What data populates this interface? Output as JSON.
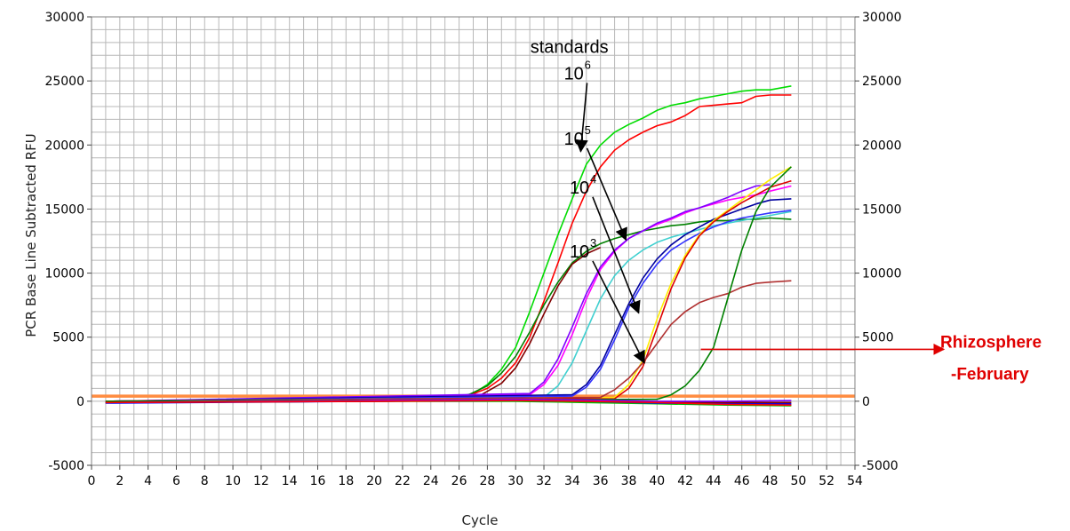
{
  "chart_data": {
    "type": "line",
    "title": "",
    "xlabel": "Cycle",
    "ylabel": "PCR Base Line Subtracted RFU",
    "xlim": [
      0,
      54
    ],
    "ylim": [
      -5000,
      30000
    ],
    "x_ticks": [
      0,
      2,
      4,
      6,
      8,
      10,
      12,
      14,
      16,
      18,
      20,
      22,
      24,
      26,
      28,
      30,
      32,
      34,
      36,
      38,
      40,
      42,
      44,
      46,
      48,
      50,
      52,
      54
    ],
    "y_ticks": [
      -5000,
      0,
      5000,
      10000,
      15000,
      20000,
      25000,
      30000
    ],
    "right_axis_mirror": true,
    "grid": true,
    "threshold": {
      "value": 400,
      "color": "#ff8c40"
    },
    "series": [
      {
        "color": "#00dd00",
        "x": [
          1,
          25,
          27,
          28,
          29,
          30,
          31,
          32,
          33,
          34,
          35,
          36,
          37,
          38,
          39,
          40,
          41,
          42,
          43,
          44,
          45,
          46,
          47,
          48,
          49.5
        ],
        "values": [
          -100,
          150,
          600,
          1300,
          2500,
          4200,
          7000,
          10000,
          13000,
          15800,
          18500,
          20000,
          21000,
          21600,
          22100,
          22700,
          23100,
          23300,
          23600,
          23800,
          24000,
          24200,
          24300,
          24300,
          24600
        ]
      },
      {
        "color": "#ff0000",
        "x": [
          1,
          26,
          28,
          29,
          30,
          31,
          32,
          33,
          34,
          35,
          36,
          37,
          38,
          39,
          40,
          41,
          42,
          43,
          44,
          45,
          46,
          47,
          48,
          49.5
        ],
        "values": [
          -100,
          150,
          1000,
          1800,
          3000,
          5000,
          7800,
          10800,
          13900,
          16400,
          18300,
          19600,
          20400,
          21000,
          21500,
          21800,
          22300,
          23000,
          23100,
          23200,
          23300,
          23800,
          23900,
          23900
        ]
      },
      {
        "color": "#008000",
        "x": [
          1,
          26,
          28,
          29,
          30,
          31,
          32,
          33,
          34,
          35,
          36,
          37,
          38,
          39,
          40,
          41,
          42,
          43,
          44,
          45,
          46,
          47,
          48,
          49.5
        ],
        "values": [
          -100,
          150,
          1200,
          2200,
          3500,
          5400,
          7500,
          9300,
          10800,
          11700,
          12300,
          12700,
          13000,
          13300,
          13500,
          13700,
          13800,
          14000,
          14100,
          14100,
          14200,
          14200,
          14300,
          14200
        ]
      },
      {
        "color": "#800000",
        "x": [
          1,
          27,
          29,
          30,
          31,
          32,
          33,
          34,
          35,
          36
        ],
        "values": [
          -100,
          150,
          1400,
          2600,
          4500,
          6800,
          9000,
          10700,
          11500,
          12000
        ]
      },
      {
        "color": "#ff00ff",
        "x": [
          1,
          31,
          32,
          33,
          34,
          35,
          36,
          37,
          38,
          39,
          40,
          41,
          42,
          43,
          44,
          45,
          46,
          47,
          48,
          49.5
        ],
        "values": [
          0,
          500,
          1300,
          2800,
          5200,
          8000,
          10300,
          11700,
          12700,
          13300,
          13800,
          14200,
          14700,
          15100,
          15400,
          15700,
          15900,
          16100,
          16400,
          16800
        ]
      },
      {
        "color": "#8000ff",
        "x": [
          1,
          31,
          32,
          33,
          34,
          35,
          36,
          37,
          38,
          39,
          40,
          41,
          42,
          43,
          44,
          45,
          46,
          47,
          48
        ],
        "values": [
          0,
          600,
          1500,
          3300,
          5800,
          8400,
          10500,
          11800,
          12700,
          13300,
          13900,
          14300,
          14800,
          15100,
          15500,
          15900,
          16400,
          16800,
          16900
        ]
      },
      {
        "color": "#40d0d0",
        "x": [
          1,
          32,
          33,
          34,
          35,
          36,
          37,
          38,
          39,
          40,
          41,
          42,
          43,
          44,
          45,
          46,
          47,
          48,
          49.5
        ],
        "values": [
          0,
          300,
          1200,
          3000,
          5500,
          8000,
          9800,
          11000,
          11800,
          12400,
          12800,
          13100,
          13400,
          13700,
          13900,
          14100,
          14300,
          14500,
          14800
        ]
      },
      {
        "color": "#0000a0",
        "x": [
          1,
          34,
          35,
          36,
          37,
          38,
          39,
          40,
          41,
          42,
          43,
          44,
          45,
          46,
          47,
          48,
          49.5
        ],
        "values": [
          0,
          500,
          1300,
          2800,
          5200,
          7600,
          9600,
          11100,
          12200,
          13000,
          13600,
          14200,
          14600,
          15000,
          15400,
          15700,
          15800
        ]
      },
      {
        "color": "#3333ff",
        "x": [
          1,
          34,
          35,
          36,
          37,
          38,
          39,
          40,
          41,
          42,
          43,
          44,
          45,
          46,
          47,
          48,
          49.5
        ],
        "values": [
          0,
          400,
          1100,
          2500,
          4800,
          7300,
          9200,
          10700,
          11800,
          12500,
          13100,
          13600,
          14000,
          14300,
          14500,
          14700,
          14900
        ]
      },
      {
        "color": "#ffee00",
        "x": [
          1,
          37,
          38,
          39,
          40,
          41,
          42,
          43,
          44,
          45,
          46,
          47,
          48,
          49.5
        ],
        "values": [
          0,
          300,
          1300,
          3200,
          6400,
          9200,
          11400,
          13000,
          14100,
          14900,
          15700,
          16500,
          17300,
          18300
        ]
      },
      {
        "color": "#dd0000",
        "x": [
          1,
          37,
          38,
          39,
          40,
          41,
          42,
          43,
          44,
          45,
          46,
          47,
          48,
          49.5
        ],
        "values": [
          0,
          200,
          1000,
          2700,
          5700,
          8800,
          11200,
          12900,
          14000,
          14800,
          15500,
          16100,
          16700,
          17200
        ]
      },
      {
        "color": "#b03030",
        "x": [
          1,
          36,
          37,
          38,
          39,
          40,
          41,
          42,
          43,
          44,
          45,
          46,
          47,
          48,
          49.5
        ],
        "values": [
          0,
          300,
          900,
          1800,
          3000,
          4500,
          6000,
          7000,
          7700,
          8100,
          8400,
          8900,
          9200,
          9300,
          9400
        ]
      },
      {
        "color": "#008000",
        "x": [
          1,
          40,
          41,
          42,
          43,
          44,
          45,
          46,
          47,
          48,
          49.5
        ],
        "values": [
          0,
          150,
          500,
          1200,
          2400,
          4200,
          8000,
          11800,
          14800,
          16700,
          18300
        ]
      },
      {
        "color": "#ff00ff",
        "x": [
          1,
          20,
          30,
          35,
          40,
          45,
          49.5
        ],
        "values": [
          -100,
          50,
          100,
          0,
          -100,
          -200,
          -300
        ]
      },
      {
        "color": "#00c000",
        "x": [
          1,
          20,
          30,
          35,
          40,
          45,
          49.5
        ],
        "values": [
          -100,
          0,
          0,
          -100,
          -200,
          -300,
          -350
        ]
      },
      {
        "color": "#0000ff",
        "x": [
          1,
          20,
          30,
          35,
          40,
          45,
          49.5
        ],
        "values": [
          -150,
          0,
          50,
          0,
          -150,
          -200,
          -200
        ]
      },
      {
        "color": "#800000",
        "x": [
          1,
          20,
          30,
          35,
          40,
          45,
          49.5
        ],
        "values": [
          -100,
          0,
          100,
          50,
          -50,
          -100,
          -100
        ]
      },
      {
        "color": "#8000ff",
        "x": [
          1,
          20,
          30,
          35,
          40,
          45,
          49.5
        ],
        "values": [
          -100,
          50,
          150,
          100,
          0,
          0,
          50
        ]
      },
      {
        "color": "#ff0000",
        "x": [
          1,
          20,
          30,
          35,
          40,
          45,
          49.5
        ],
        "values": [
          -100,
          0,
          50,
          0,
          -100,
          -250,
          -300
        ]
      }
    ],
    "annotations": {
      "standards_label": "standards",
      "labels": [
        {
          "base": "10",
          "exp": "6",
          "at": [
            34.8,
            25400
          ],
          "arrow_to": [
            34.6,
            19500
          ]
        },
        {
          "base": "10",
          "exp": "5",
          "at": [
            34.8,
            20300
          ],
          "arrow_to": [
            37.8,
            12600
          ]
        },
        {
          "base": "10",
          "exp": "4",
          "at": [
            35.2,
            16500
          ],
          "arrow_to": [
            38.7,
            6900
          ]
        },
        {
          "base": "10",
          "exp": "3",
          "at": [
            35.2,
            11500
          ],
          "arrow_to": [
            39.1,
            3000
          ]
        }
      ],
      "red_note": {
        "line1": "Rhizosphere",
        "line2": "-February",
        "from": [
          43.1,
          4050
        ]
      }
    }
  }
}
